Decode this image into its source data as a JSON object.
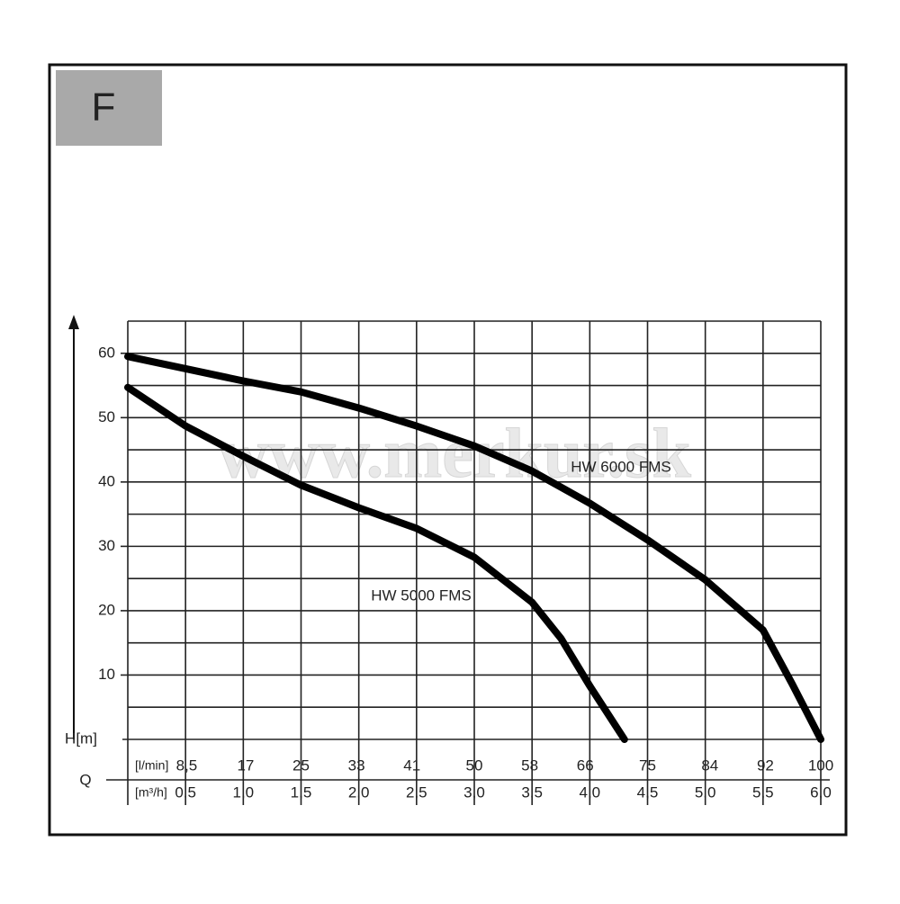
{
  "chart_data": {
    "type": "line",
    "title": "F",
    "watermark": "www.merkur.sk",
    "ylabel": "H[m]",
    "xlabel": "Q",
    "x_unit": "[m³/h]",
    "x2_unit": "[l/min]",
    "grid": true,
    "xlim": [
      0,
      6.0
    ],
    "xticks": [
      {
        "value": 0.5,
        "label": "0,5"
      },
      {
        "value": 1.0,
        "label": "1,0"
      },
      {
        "value": 1.5,
        "label": "1,5"
      },
      {
        "value": 2.0,
        "label": "2,0"
      },
      {
        "value": 2.5,
        "label": "2,5"
      },
      {
        "value": 3.0,
        "label": "3,0"
      },
      {
        "value": 3.5,
        "label": "3,5"
      },
      {
        "value": 4.0,
        "label": "4,0"
      },
      {
        "value": 4.5,
        "label": "4,5"
      },
      {
        "value": 5.0,
        "label": "5,0"
      },
      {
        "value": 5.5,
        "label": "5,5"
      },
      {
        "value": 6.0,
        "label": "6,0"
      }
    ],
    "x2lim": [
      0,
      100
    ],
    "x2ticks": [
      {
        "value": 8.5,
        "label": "8,5"
      },
      17,
      25,
      33,
      41,
      50,
      58,
      66,
      75,
      84,
      92,
      100
    ],
    "ylim": [
      0,
      65
    ],
    "yticks": [
      10,
      20,
      30,
      40,
      50,
      60
    ],
    "y_minor_ticks": [
      5,
      15,
      25,
      35,
      45,
      55,
      65
    ],
    "series": [
      {
        "name": "HW 6000 FMS",
        "color": "#000000",
        "x": [
          0,
          1.0,
          1.5,
          2.0,
          2.5,
          3.0,
          3.5,
          4.0,
          4.5,
          5.0,
          5.5,
          5.75,
          6.0
        ],
        "values": [
          59.5,
          55.7,
          54,
          51.5,
          48.7,
          45.6,
          41.7,
          36.7,
          31,
          24.8,
          17,
          8.7,
          0
        ]
      },
      {
        "name": "HW 5000 FMS",
        "color": "#000000",
        "x": [
          0,
          0.5,
          1.0,
          1.5,
          2.0,
          2.5,
          3.0,
          3.5,
          3.75,
          4.0,
          4.3
        ],
        "values": [
          54.7,
          48.7,
          44,
          39.5,
          36,
          32.8,
          28.3,
          21.3,
          15.7,
          8.3,
          0
        ]
      }
    ]
  }
}
